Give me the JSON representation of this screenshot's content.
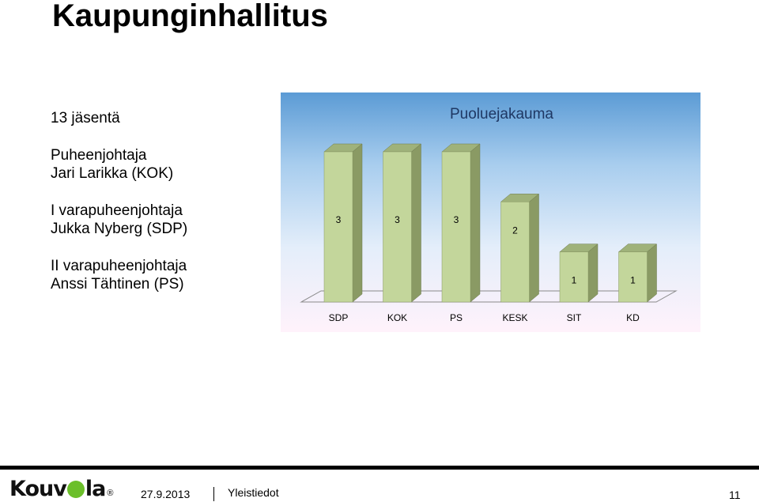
{
  "page": {
    "title": "Kaupunginhallitus",
    "members": "13 jäsentä",
    "roles": [
      {
        "role": "Puheenjohtaja",
        "name": "Jari Larikka (KOK)"
      },
      {
        "role": "I varapuheenjohtaja",
        "name": "Jukka Nyberg (SDP)"
      },
      {
        "role": "II varapuheenjohtaja",
        "name": "Anssi Tähtinen (PS)"
      }
    ]
  },
  "chart_data": {
    "type": "bar",
    "title": "Puoluejakauma",
    "categories": [
      "SDP",
      "KOK",
      "PS",
      "KESK",
      "SIT",
      "KD"
    ],
    "values": [
      3,
      3,
      3,
      2,
      1,
      1
    ],
    "data_labels": [
      "3",
      "3",
      "3",
      "2",
      "1",
      "1"
    ],
    "ylim": [
      0,
      3
    ],
    "grid": false,
    "legend": "none",
    "bar_color": "#c3d69b",
    "title_color": "#1f3864"
  },
  "footer": {
    "logo_text_left": "Kouv",
    "logo_text_right": "la",
    "logo_reg": "®",
    "date": "27.9.2013",
    "section": "Yleistiedot",
    "page_number": "11"
  }
}
